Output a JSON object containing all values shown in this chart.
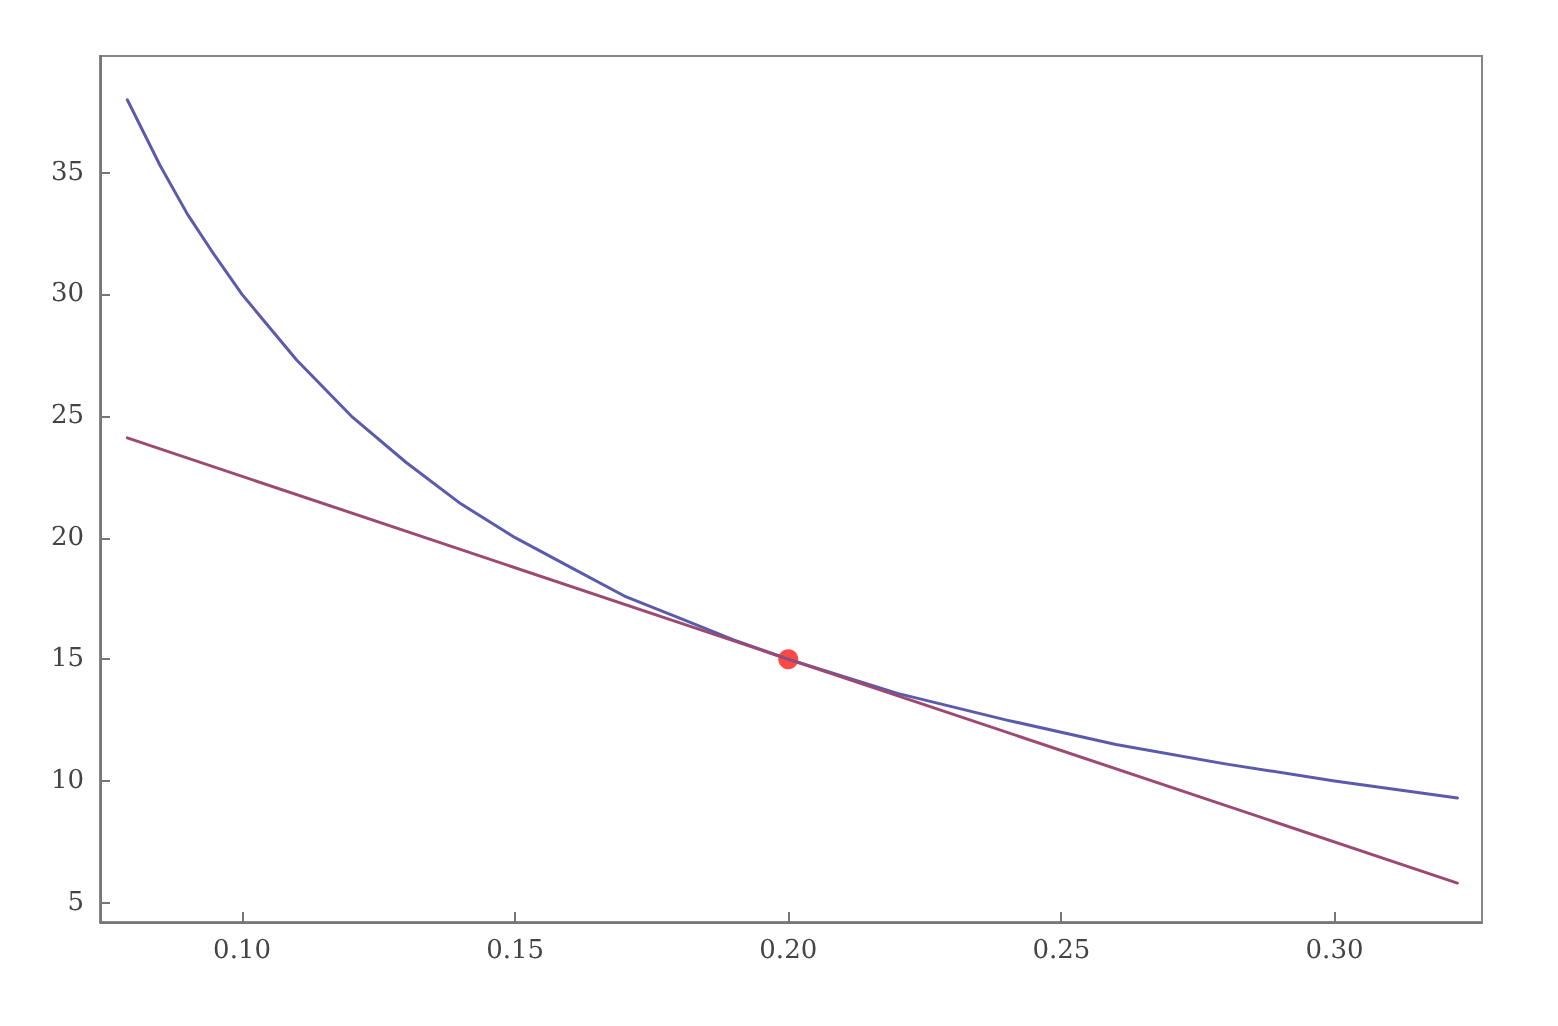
{
  "chart_data": {
    "type": "line",
    "xlim": [
      0.074,
      0.327
    ],
    "ylim": [
      4.2,
      39.8
    ],
    "xticks": [
      {
        "value": 0.1,
        "label": "0.10"
      },
      0.15,
      {
        "value": 0.2,
        "label": "0.20"
      },
      0.25,
      {
        "value": 0.3,
        "label": "0.30"
      }
    ],
    "yticks": [
      5,
      10,
      15,
      20,
      25,
      30,
      35
    ],
    "grid": false,
    "marker": "none",
    "line_style": "solid",
    "series": [
      {
        "color": "#5b5bab",
        "x": [
          0.079,
          0.085,
          0.09,
          0.095,
          0.1,
          0.11,
          0.12,
          0.13,
          0.14,
          0.15,
          0.16,
          0.17,
          0.18,
          0.19,
          0.2,
          0.22,
          0.24,
          0.26,
          0.28,
          0.3,
          0.3225
        ],
        "values": [
          38.0,
          35.3,
          33.3,
          31.6,
          30.0,
          27.3,
          25.0,
          23.1,
          21.4,
          20.0,
          18.8,
          17.6,
          16.7,
          15.8,
          15.0,
          13.6,
          12.5,
          11.5,
          10.7,
          10.0,
          9.3
        ]
      },
      {
        "color": "#9c4a72",
        "x": [
          0.079,
          0.3225
        ],
        "values": [
          24.1,
          5.8
        ]
      },
      {
        "type": "scatter",
        "marker": "circle",
        "color": "#ff1a1a",
        "x": [
          0.2
        ],
        "values": [
          15.0
        ]
      }
    ]
  }
}
